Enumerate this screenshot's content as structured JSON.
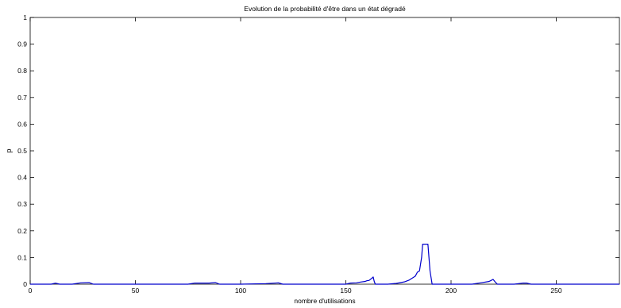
{
  "chart_data": {
    "type": "line",
    "title": "Evolution de la probabilité d'être dans un état dégradé",
    "xlabel": "nombre d'utilisations",
    "ylabel": "p",
    "xlim": [
      0,
      280
    ],
    "ylim": [
      0,
      1
    ],
    "xticks": [
      0,
      50,
      100,
      150,
      200,
      250
    ],
    "yticks": [
      0,
      0.1,
      0.2,
      0.3,
      0.4,
      0.5,
      0.6,
      0.7,
      0.8,
      0.9,
      1
    ],
    "grid": false,
    "colors": {
      "line": "#0000cc",
      "axes": "#000000",
      "background": "#ffffff"
    },
    "series": [
      {
        "x": [
          0,
          10,
          12,
          14,
          20,
          24,
          28,
          30,
          40,
          60,
          75,
          78,
          85,
          88,
          90,
          100,
          112,
          118,
          120,
          135,
          150,
          152,
          155,
          157,
          159,
          160,
          161,
          162,
          163,
          163.5,
          164,
          170,
          174,
          176,
          178,
          180,
          181,
          182,
          183,
          184,
          185,
          186,
          186.5,
          187,
          188,
          189,
          189.5,
          190,
          191,
          200,
          210,
          214,
          218,
          219,
          220,
          221,
          222,
          224,
          230,
          234,
          236,
          238,
          240,
          250,
          255,
          260,
          280
        ],
        "y": [
          0,
          0,
          0.004,
          0,
          0,
          0.005,
          0.006,
          0,
          0,
          0,
          0,
          0.004,
          0.004,
          0.006,
          0,
          0,
          0.002,
          0.005,
          0,
          0,
          0,
          0.004,
          0.005,
          0.008,
          0.01,
          0.013,
          0.014,
          0.02,
          0.027,
          0.01,
          0,
          0,
          0.003,
          0.006,
          0.009,
          0.015,
          0.02,
          0.025,
          0.03,
          0.045,
          0.05,
          0.1,
          0.15,
          0.15,
          0.15,
          0.15,
          0.1,
          0.05,
          0,
          0,
          0,
          0.005,
          0.01,
          0.014,
          0.018,
          0.008,
          0,
          0,
          0,
          0.004,
          0.004,
          0,
          0,
          0,
          0,
          0,
          0
        ]
      }
    ]
  }
}
